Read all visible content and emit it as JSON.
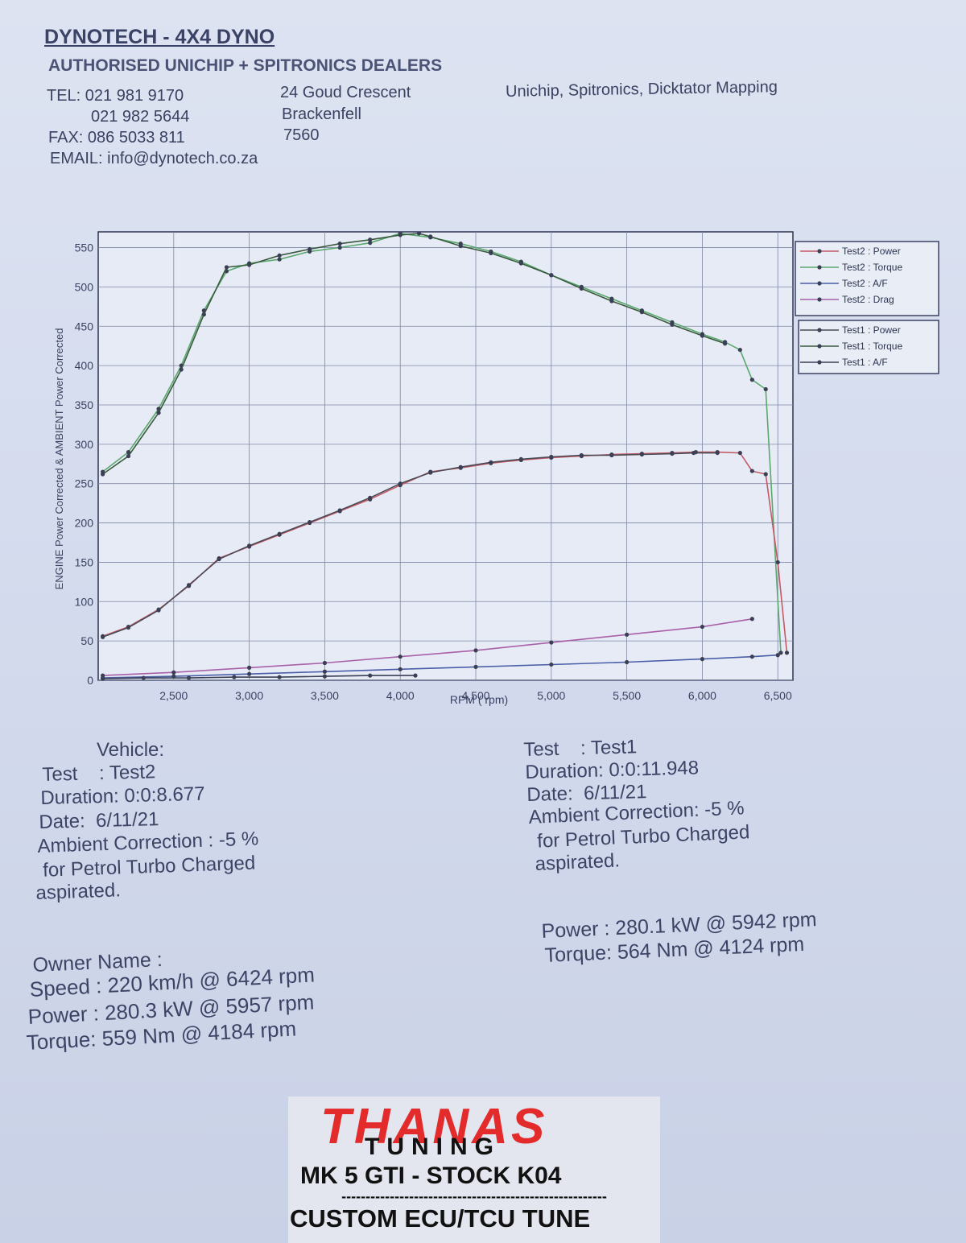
{
  "header": {
    "title": "DYNOTECH - 4X4 DYNO",
    "dealers": "AUTHORISED UNICHIP + SPITRONICS DEALERS",
    "tel_1": "TEL: 021 981 9170",
    "tel_2": "021 982 5644",
    "fax": "FAX: 086 5033 811",
    "email": "EMAIL: info@dynotech.co.za",
    "address_1": "24 Goud Crescent",
    "address_2": "Brackenfell",
    "address_3": "7560",
    "services": "Unichip, Spitronics, Dicktator Mapping"
  },
  "test2_info": {
    "vehicle": "Vehicle:",
    "test": "Test    : Test2",
    "duration": "Duration: 0:0:8.677",
    "date": "Date:  6/11/21",
    "ambient": "Ambient Correction : -5 %",
    "petrol": " for Petrol Turbo Charged",
    "aspirated": "aspirated.",
    "owner": "Owner Name :",
    "speed": "Speed : 220 km/h @ 6424 rpm",
    "power": "Power : 280.3 kW @ 5957 rpm",
    "torque": "Torque: 559 Nm @ 4184 rpm"
  },
  "test1_info": {
    "test": "Test    : Test1",
    "duration": "Duration: 0:0:11.948",
    "date": "Date:  6/11/21",
    "ambient": "Ambient Correction: -5 %",
    "petrol": " for Petrol Turbo Charged",
    "aspirated": "aspirated.",
    "power": "Power : 280.1 kW @ 5942 rpm",
    "torque": "Torque: 564 Nm @ 4124 rpm"
  },
  "banner": {
    "brand": "THANAS",
    "brand_sub": "TUNING",
    "car": "MK 5 GTI - STOCK K04",
    "dashes": "-------------------------------------------------------",
    "tune": "CUSTOM ECU/TCU TUNE"
  },
  "chart_data": {
    "type": "line",
    "xlabel": "RPM ( rpm)",
    "ylabel": "ENGINE Power Corrected & AMBIENT Power Corrected",
    "xlim": [
      2000,
      6600
    ],
    "ylim": [
      0,
      570
    ],
    "x_ticks": [
      "2,500",
      "3,000",
      "3,500",
      "4,000",
      "4,500",
      "5,000",
      "5,500",
      "6,000",
      "6,500"
    ],
    "y_ticks": [
      "0",
      "50",
      "100",
      "150",
      "200",
      "250",
      "300",
      "350",
      "400",
      "450",
      "500",
      "550"
    ],
    "grid": true,
    "legend_position": "right",
    "legend": [
      "Test2 : Power",
      "Test2 : Torque",
      "Test2 : A/F",
      "Test2 : Drag",
      "Test1 : Power",
      "Test1 : Torque",
      "Test1 : A/F"
    ],
    "series": [
      {
        "name": "Test2 : Torque",
        "color": "#5aa86e",
        "x": [
          2030,
          2200,
          2400,
          2550,
          2700,
          2850,
          3000,
          3200,
          3400,
          3600,
          3800,
          4000,
          4200,
          4400,
          4600,
          4800,
          5000,
          5200,
          5400,
          5600,
          5800,
          6000,
          6150,
          6250,
          6330,
          6420,
          6520
        ],
        "y": [
          265,
          290,
          345,
          400,
          470,
          520,
          530,
          535,
          545,
          550,
          556,
          568,
          563,
          555,
          545,
          532,
          515,
          500,
          485,
          470,
          455,
          440,
          430,
          420,
          382,
          370,
          35
        ]
      },
      {
        "name": "Test1 : Torque",
        "color": "#3a5a3f",
        "x": [
          2030,
          2200,
          2400,
          2550,
          2700,
          2850,
          3000,
          3200,
          3400,
          3600,
          3800,
          4000,
          4124,
          4200,
          4400,
          4600,
          4800,
          5000,
          5200,
          5400,
          5600,
          5800,
          6000,
          6150
        ],
        "y": [
          262,
          285,
          340,
          395,
          465,
          525,
          528,
          540,
          548,
          555,
          560,
          566,
          568,
          564,
          552,
          543,
          530,
          515,
          498,
          482,
          468,
          452,
          438,
          428
        ]
      },
      {
        "name": "Test2 : Power",
        "color": "#c45a66",
        "x": [
          2030,
          2200,
          2400,
          2600,
          2800,
          3000,
          3200,
          3400,
          3600,
          3800,
          4000,
          4200,
          4400,
          4600,
          4800,
          5000,
          5200,
          5400,
          5600,
          5800,
          5957,
          6100,
          6250,
          6330,
          6420,
          6500,
          6560
        ],
        "y": [
          56,
          68,
          90,
          120,
          155,
          170,
          185,
          200,
          215,
          230,
          248,
          265,
          270,
          276,
          280,
          283,
          285,
          287,
          288,
          289,
          290,
          290,
          289,
          266,
          262,
          150,
          35
        ]
      },
      {
        "name": "Test1 : Power",
        "color": "#4a4a55",
        "x": [
          2030,
          2200,
          2400,
          2600,
          2800,
          3000,
          3200,
          3400,
          3600,
          3800,
          4000,
          4200,
          4400,
          4600,
          4800,
          5000,
          5200,
          5400,
          5600,
          5800,
          5942,
          6100
        ],
        "y": [
          55,
          67,
          89,
          121,
          154,
          171,
          186,
          201,
          216,
          232,
          250,
          264,
          271,
          277,
          281,
          284,
          286,
          286,
          287,
          288,
          289,
          289
        ]
      },
      {
        "name": "Test2 : Drag",
        "color": "#a860a8",
        "x": [
          2030,
          2500,
          3000,
          3500,
          4000,
          4500,
          5000,
          5500,
          6000,
          6330
        ],
        "y": [
          6,
          10,
          16,
          22,
          30,
          38,
          48,
          58,
          68,
          78
        ]
      },
      {
        "name": "Test2 : A/F",
        "color": "#4a5ea8",
        "x": [
          2030,
          2500,
          3000,
          3500,
          4000,
          4500,
          5000,
          5500,
          6000,
          6330,
          6500
        ],
        "y": [
          3,
          5,
          8,
          11,
          14,
          17,
          20,
          23,
          27,
          30,
          32
        ]
      },
      {
        "name": "Test1 : A/F",
        "color": "#3a4055",
        "x": [
          2030,
          2300,
          2600,
          2900,
          3200,
          3500,
          3800,
          4100
        ],
        "y": [
          2,
          3,
          3,
          4,
          4,
          5,
          6,
          6
        ]
      }
    ]
  }
}
